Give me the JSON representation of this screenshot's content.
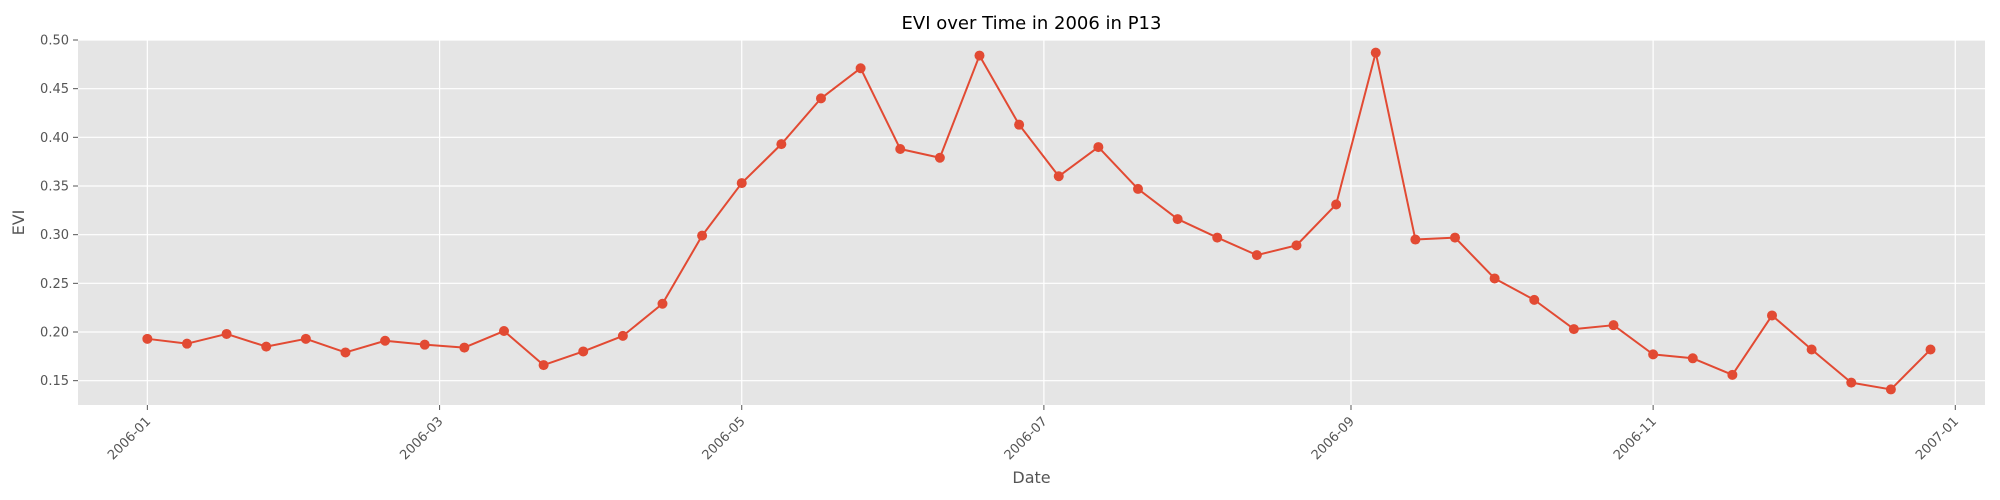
{
  "chart_data": {
    "type": "line",
    "title": "EVI over Time in 2006 in P13",
    "xlabel": "Date",
    "ylabel": "EVI",
    "x_ticks": [
      "2006-01",
      "2006-03",
      "2006-05",
      "2006-07",
      "2006-09",
      "2006-11",
      "2007-01"
    ],
    "y_ticks": [
      "0.15",
      "0.20",
      "0.25",
      "0.30",
      "0.35",
      "0.40",
      "0.45",
      "0.50"
    ],
    "xlim": [
      "2005-12-18",
      "2007-01-07"
    ],
    "ylim": [
      0.125,
      0.5
    ],
    "grid": true,
    "marker": "circle",
    "series": [
      {
        "color": "#E24A33",
        "x": [
          "2006-01-01",
          "2006-01-09",
          "2006-01-17",
          "2006-01-25",
          "2006-02-02",
          "2006-02-10",
          "2006-02-18",
          "2006-02-26",
          "2006-03-06",
          "2006-03-14",
          "2006-03-22",
          "2006-03-30",
          "2006-04-07",
          "2006-04-15",
          "2006-04-23",
          "2006-05-01",
          "2006-05-09",
          "2006-05-17",
          "2006-05-25",
          "2006-06-02",
          "2006-06-10",
          "2006-06-18",
          "2006-06-26",
          "2006-07-04",
          "2006-07-12",
          "2006-07-20",
          "2006-07-28",
          "2006-08-05",
          "2006-08-13",
          "2006-08-21",
          "2006-08-29",
          "2006-09-06",
          "2006-09-14",
          "2006-09-22",
          "2006-09-30",
          "2006-10-08",
          "2006-10-16",
          "2006-10-24",
          "2006-11-01",
          "2006-11-09",
          "2006-11-17",
          "2006-11-25",
          "2006-12-03",
          "2006-12-11",
          "2006-12-19",
          "2006-12-27"
        ],
        "y": [
          0.193,
          0.188,
          0.198,
          0.185,
          0.193,
          0.179,
          0.191,
          0.187,
          0.184,
          0.201,
          0.166,
          0.18,
          0.196,
          0.229,
          0.299,
          0.353,
          0.393,
          0.44,
          0.471,
          0.388,
          0.379,
          0.484,
          0.413,
          0.36,
          0.39,
          0.347,
          0.316,
          0.297,
          0.279,
          0.289,
          0.331,
          0.487,
          0.295,
          0.297,
          0.255,
          0.233,
          0.203,
          0.207,
          0.177,
          0.173,
          0.156,
          0.217,
          0.182,
          0.148,
          0.141,
          0.182
        ]
      }
    ]
  }
}
